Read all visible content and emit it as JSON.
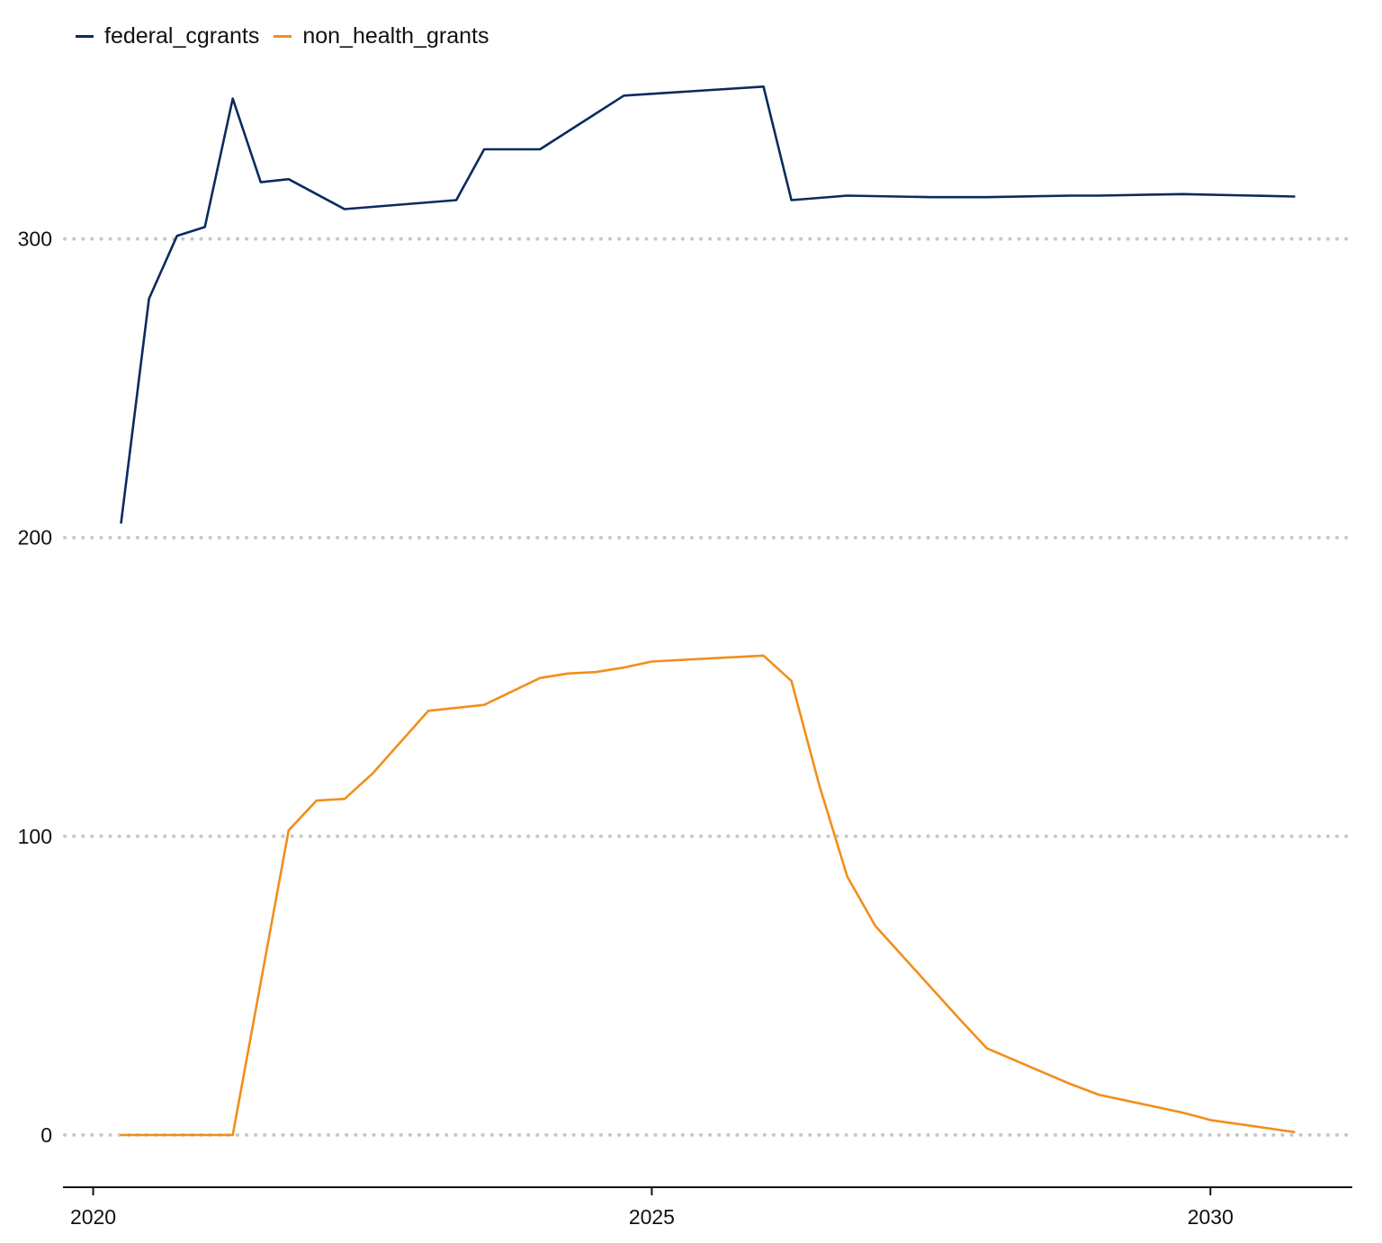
{
  "colors": {
    "federal_cgrants": "#0b2a5e",
    "non_health_grants": "#f28e1c",
    "grid": "#c8c8c8",
    "axis": "#111111"
  },
  "legend": [
    {
      "label": "federal_cgrants",
      "color": "#0b2a5e"
    },
    {
      "label": "non_health_grants",
      "color": "#f28e1c"
    }
  ],
  "chart_data": {
    "type": "line",
    "title": "",
    "xlabel": "",
    "ylabel": "",
    "xlim": [
      2019.73,
      2031.27
    ],
    "ylim": [
      -17.5,
      380
    ],
    "grid": "horizontal dotted",
    "legend_position": "top-left",
    "x_ticks": [
      2020,
      2025,
      2030
    ],
    "y_ticks": [
      0,
      100,
      200,
      300
    ],
    "x_tick_labels": [
      "2020",
      "2025",
      "2030"
    ],
    "y_tick_labels": [
      "0",
      "100",
      "200",
      "300"
    ],
    "series": [
      {
        "name": "federal_cgrants",
        "color": "#0b2a5e",
        "points": [
          [
            2020.25,
            205
          ],
          [
            2020.5,
            280
          ],
          [
            2020.75,
            301
          ],
          [
            2021.0,
            304
          ],
          [
            2021.25,
            347
          ],
          [
            2021.5,
            319
          ],
          [
            2021.75,
            320
          ],
          [
            2022.25,
            310
          ],
          [
            2023.25,
            313
          ],
          [
            2023.5,
            330
          ],
          [
            2024.0,
            330
          ],
          [
            2024.75,
            348
          ],
          [
            2026.0,
            351
          ],
          [
            2026.25,
            313
          ],
          [
            2026.75,
            314.5
          ],
          [
            2027.5,
            314
          ],
          [
            2028.0,
            314
          ],
          [
            2028.75,
            314.5
          ],
          [
            2029.0,
            314.5
          ],
          [
            2029.75,
            315
          ],
          [
            2030.75,
            314.2
          ]
        ]
      },
      {
        "name": "non_health_grants",
        "color": "#f28e1c",
        "points": [
          [
            2020.25,
            0
          ],
          [
            2020.5,
            0
          ],
          [
            2020.75,
            0
          ],
          [
            2021.0,
            0
          ],
          [
            2021.25,
            0
          ],
          [
            2021.75,
            102
          ],
          [
            2022.0,
            112
          ],
          [
            2022.25,
            112.5
          ],
          [
            2022.5,
            121
          ],
          [
            2023.0,
            142
          ],
          [
            2023.5,
            144
          ],
          [
            2024.0,
            153
          ],
          [
            2024.25,
            154.5
          ],
          [
            2024.5,
            155
          ],
          [
            2024.75,
            156.5
          ],
          [
            2025.0,
            158.5
          ],
          [
            2025.5,
            159.5
          ],
          [
            2026.0,
            160.5
          ],
          [
            2026.25,
            152
          ],
          [
            2026.5,
            117
          ],
          [
            2026.75,
            86.5
          ],
          [
            2027.0,
            70
          ],
          [
            2027.75,
            39
          ],
          [
            2028.0,
            29
          ],
          [
            2028.75,
            17
          ],
          [
            2029.0,
            13.5
          ],
          [
            2029.75,
            7.5
          ],
          [
            2030.0,
            5
          ],
          [
            2030.75,
            1
          ]
        ]
      }
    ]
  }
}
